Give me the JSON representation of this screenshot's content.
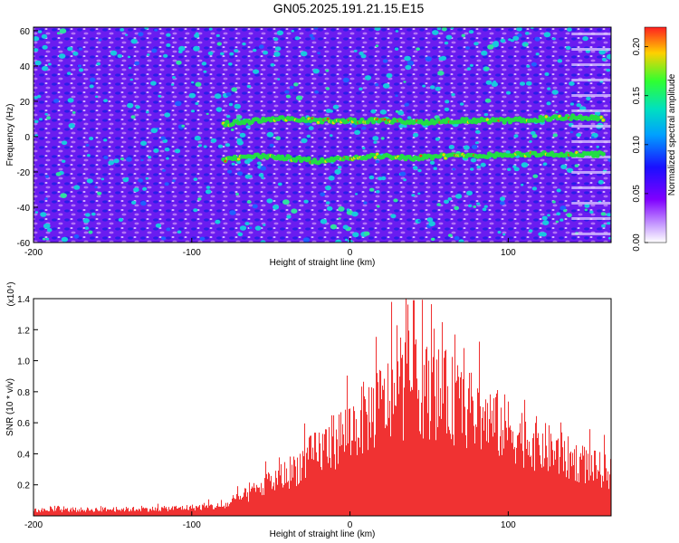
{
  "title": "GN05.2025.191.21.15.E15",
  "colors": {
    "snr_fill": "#f03232",
    "ridge": "#22dd44",
    "hot": "#ff4010",
    "speckle": "#18c8e0"
  },
  "chart_data": [
    {
      "type": "heatmap",
      "title": "GN05.2025.191.21.15.E15",
      "xlabel": "Height of straight line (km)",
      "ylabel": "Frequency (Hz)",
      "xlim": [
        -200,
        165
      ],
      "ylim": [
        -60,
        62
      ],
      "xticks": [
        -200,
        -100,
        0,
        100
      ],
      "yticks": [
        60,
        40,
        20,
        0,
        -20,
        -40,
        -60
      ],
      "colorbar": {
        "label": "Normalized spectral amplitude",
        "range": [
          0.0,
          0.22
        ],
        "ticks": [
          "0.00",
          "0.05",
          "0.10",
          "0.15",
          "0.20"
        ]
      },
      "ridges": [
        {
          "x": [
            -80,
            -60,
            -40,
            -20,
            0,
            20,
            40,
            60,
            80,
            100,
            120,
            140,
            160
          ],
          "y": [
            7,
            9,
            10,
            9,
            9,
            9,
            8,
            9,
            9,
            9,
            10,
            11,
            10
          ]
        },
        {
          "x": [
            -80,
            -60,
            -40,
            -20,
            0,
            20,
            40,
            60,
            80,
            100,
            120,
            140,
            160
          ],
          "y": [
            -13,
            -11,
            -12,
            -14,
            -12,
            -11,
            -12,
            -11,
            -11,
            -10,
            -10,
            -10,
            -10
          ]
        }
      ]
    },
    {
      "type": "bar",
      "xlabel": "Height of straight line (km)",
      "ylabel": "SNR (10 * v/v)",
      "y_multiplier": "(x10⁴)",
      "xlim": [
        -200,
        165
      ],
      "ylim": [
        0,
        1.4
      ],
      "xticks": [
        -200,
        -100,
        0,
        100
      ],
      "yticks": [
        0.2,
        0.4,
        0.6,
        0.8,
        1.0,
        1.2,
        1.4
      ],
      "envelope": {
        "x": [
          -200,
          -120,
          -80,
          -60,
          -40,
          -20,
          0,
          20,
          40,
          60,
          80,
          100,
          120,
          140,
          165
        ],
        "y": [
          0.04,
          0.05,
          0.07,
          0.18,
          0.3,
          0.46,
          0.62,
          0.8,
          0.92,
          0.86,
          0.72,
          0.62,
          0.5,
          0.4,
          0.3
        ]
      },
      "peak": {
        "x": 40,
        "y": 1.39
      }
    }
  ]
}
